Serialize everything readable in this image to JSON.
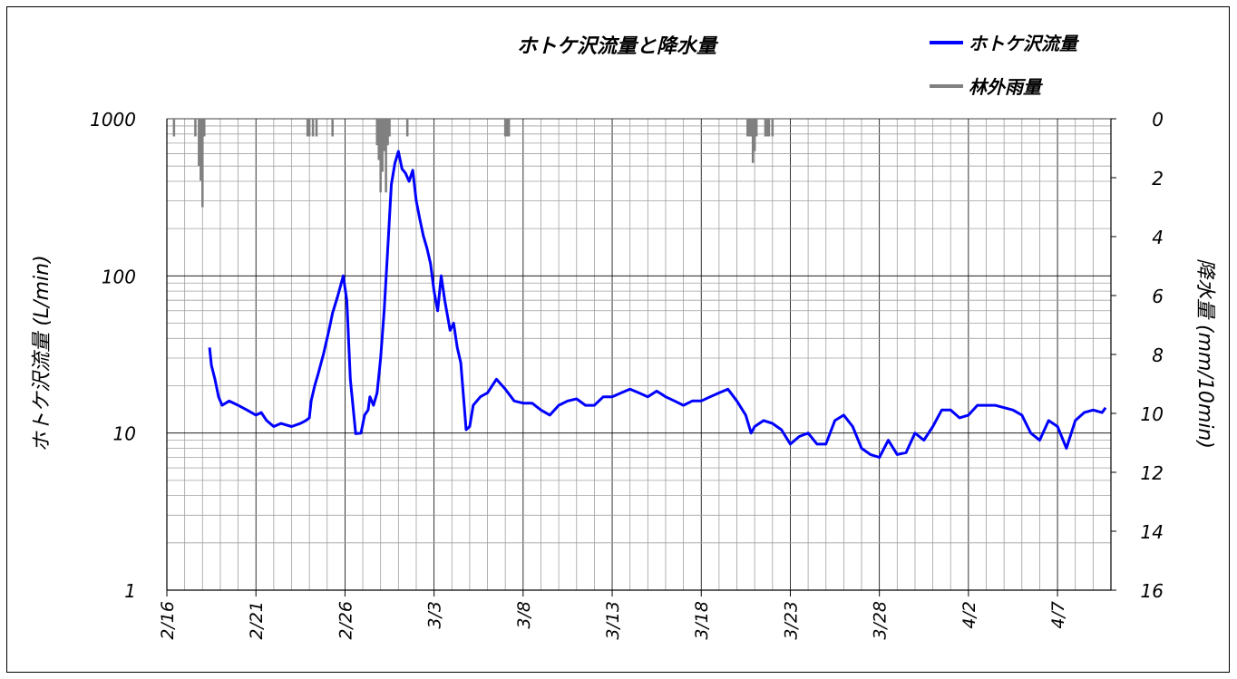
{
  "chart_data": {
    "type": "line",
    "title": "ホトケ沢流量と降水量",
    "ylabel_left": "ホトケ沢流量 (L/min)",
    "ylabel_right": "降水量 (mm/10min)",
    "y_left_scale": "log",
    "ylim_left": [
      1,
      1000
    ],
    "ylim_right_inverted": [
      0,
      16
    ],
    "y_left_ticks": [
      "1",
      "10",
      "100",
      "1000"
    ],
    "y_right_ticks": [
      "0",
      "2",
      "4",
      "6",
      "8",
      "10",
      "12",
      "14",
      "16"
    ],
    "x_ticks": [
      "2/16",
      "2/21",
      "2/26",
      "3/3",
      "3/8",
      "3/13",
      "3/18",
      "3/23",
      "3/28",
      "4/2",
      "4/7"
    ],
    "xlim_days": [
      0,
      53
    ],
    "grid": true,
    "legend_position": "top-right",
    "colors": {
      "flow": "#0000ff",
      "rain": "#808080"
    },
    "series": [
      {
        "name": "ホトケ沢流量",
        "axis": "left",
        "x_days": [
          2.4,
          2.5,
          2.7,
          2.9,
          3.1,
          3.5,
          4.0,
          4.5,
          5.0,
          5.3,
          5.6,
          6.0,
          6.4,
          7.0,
          7.5,
          7.8,
          8.0,
          8.1,
          8.3,
          8.5,
          8.8,
          9.1,
          9.3,
          9.6,
          9.9,
          10.1,
          10.2,
          10.3,
          10.6,
          10.9,
          11.1,
          11.3,
          11.4,
          11.6,
          11.8,
          12.0,
          12.2,
          12.4,
          12.6,
          12.8,
          13.0,
          13.2,
          13.4,
          13.6,
          13.8,
          14.0,
          14.2,
          14.4,
          14.6,
          14.8,
          15.0,
          15.2,
          15.4,
          15.6,
          15.9,
          16.1,
          16.3,
          16.5,
          16.8,
          17.0,
          17.2,
          17.4,
          17.6,
          17.8,
          18.0,
          18.5,
          19.0,
          19.5,
          20.0,
          20.5,
          21.0,
          21.5,
          22.0,
          22.5,
          23.0,
          23.5,
          24.0,
          24.5,
          25.0,
          25.5,
          26.0,
          26.5,
          27.0,
          27.5,
          28.0,
          28.5,
          29.0,
          29.5,
          30.0,
          30.5,
          31.0,
          31.5,
          32.0,
          32.5,
          32.8,
          33.0,
          33.5,
          34.0,
          34.5,
          35.0,
          35.5,
          36.0,
          36.5,
          37.0,
          37.5,
          38.0,
          38.5,
          39.0,
          39.5,
          40.0,
          40.5,
          41.0,
          41.5,
          42.0,
          42.5,
          43.0,
          43.5,
          44.0,
          44.5,
          45.0,
          45.5,
          46.0,
          46.5,
          47.0,
          47.5,
          48.0,
          48.5,
          49.0,
          49.5,
          50.0,
          50.5,
          51.0,
          51.5,
          52.0,
          52.5,
          52.7
        ],
        "y": [
          35,
          27,
          22,
          17,
          15,
          16,
          15,
          14,
          13,
          13.5,
          12,
          11,
          11.5,
          11,
          11.5,
          12,
          12.5,
          16,
          20,
          24,
          32,
          45,
          58,
          75,
          100,
          70,
          40,
          22,
          9.9,
          10,
          13,
          14,
          17,
          15,
          18,
          30,
          60,
          150,
          380,
          520,
          620,
          480,
          450,
          400,
          470,
          300,
          230,
          180,
          150,
          120,
          80,
          60,
          100,
          70,
          45,
          50,
          35,
          28,
          10.5,
          11,
          15,
          16,
          17,
          17.5,
          18,
          22,
          19,
          16,
          15.5,
          15.5,
          14,
          13,
          15,
          16,
          16.5,
          15,
          15,
          17,
          17,
          18,
          19,
          18,
          17,
          18.5,
          17,
          16,
          15,
          16,
          16,
          17,
          18,
          19,
          16,
          13,
          10,
          11,
          12,
          11.5,
          10.5,
          8.5,
          9.5,
          10,
          8.5,
          8.5,
          12,
          13,
          11,
          8,
          7.3,
          7,
          9,
          7.3,
          7.5,
          10,
          9,
          11,
          14,
          14,
          12.5,
          13,
          15,
          15,
          15,
          14.5,
          14,
          13,
          10,
          9,
          12,
          11,
          8,
          12,
          13.5,
          14,
          13.5,
          14.5
        ]
      },
      {
        "name": "林外雨量",
        "axis": "right",
        "x_days": [
          0.4,
          1.6,
          1.8,
          1.9,
          2.0,
          2.1,
          7.9,
          8.0,
          8.2,
          8.4,
          9.3,
          11.8,
          11.9,
          12.0,
          12.1,
          12.2,
          12.3,
          12.4,
          12.5,
          13.5,
          19.0,
          19.1,
          19.2,
          32.6,
          32.7,
          32.8,
          32.9,
          33.0,
          33.1,
          33.6,
          33.7,
          33.8,
          34.0
        ],
        "y": [
          0.6,
          0.6,
          1.6,
          2.1,
          3.0,
          0.6,
          0.6,
          0.6,
          0.6,
          0.6,
          0.6,
          0.9,
          1.4,
          2.5,
          1.8,
          1.1,
          2.5,
          0.9,
          0.6,
          0.6,
          0.6,
          0.6,
          0.6,
          0.6,
          0.6,
          0.6,
          1.5,
          1.1,
          0.6,
          0.6,
          0.6,
          0.6,
          0.6
        ]
      }
    ]
  }
}
